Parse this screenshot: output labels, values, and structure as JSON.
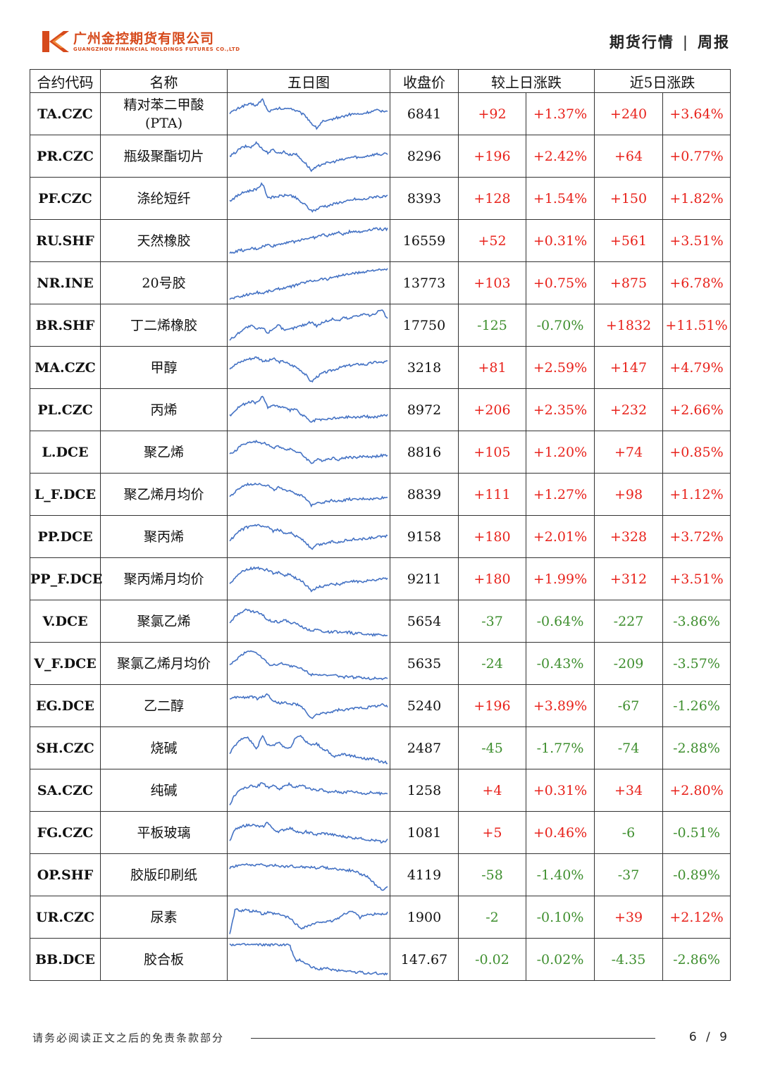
{
  "header": {
    "company_cn": "广州金控期货有限公司",
    "company_en": "GUANGZHOU FINANCIAL HOLDINGS FUTURES CO.,LTD",
    "section": "期货行情",
    "separator": "|",
    "report_type": "周报",
    "brand_color": "#d64a1c"
  },
  "table": {
    "headers": {
      "code": "合约代码",
      "name": "名称",
      "chart": "五日图",
      "close": "收盘价",
      "daily": "较上日涨跌",
      "five_day": "近5日涨跌"
    },
    "colors": {
      "up": "#e8221b",
      "down": "#3f8f2f",
      "line": "#4472c4"
    },
    "rows": [
      {
        "code": "TA.CZC",
        "name": "精对苯二甲酸(PTA)",
        "name_line1": "精对苯二甲酸",
        "name_line2": "(PTA)",
        "close": "6841",
        "d_chg": "+92",
        "d_pct": "+1.37%",
        "w_chg": "+240",
        "w_pct": "+3.64%",
        "trend": [
          0.55,
          0.62,
          0.72,
          0.78,
          0.8,
          0.76,
          0.95,
          0.6,
          0.62,
          0.68,
          0.65,
          0.7,
          0.62,
          0.55,
          0.45,
          0.25,
          0.1,
          0.3,
          0.3,
          0.38,
          0.42,
          0.45,
          0.5,
          0.52,
          0.5,
          0.55,
          0.58,
          0.62,
          0.6,
          0.62
        ]
      },
      {
        "code": "PR.CZC",
        "name": "瓶级聚酯切片",
        "name_line1": "瓶级聚酯切片",
        "close": "8296",
        "d_chg": "+196",
        "d_pct": "+2.42%",
        "w_chg": "+64",
        "w_pct": "+0.77%",
        "trend": [
          0.5,
          0.62,
          0.75,
          0.8,
          0.78,
          0.92,
          0.72,
          0.62,
          0.7,
          0.6,
          0.65,
          0.55,
          0.6,
          0.45,
          0.3,
          0.1,
          0.2,
          0.3,
          0.32,
          0.35,
          0.4,
          0.42,
          0.48,
          0.5,
          0.47,
          0.52,
          0.55,
          0.58,
          0.56,
          0.6
        ]
      },
      {
        "code": "PF.CZC",
        "name": "涤纶短纤",
        "name_line1": "涤纶短纤",
        "close": "8393",
        "d_chg": "+128",
        "d_pct": "+1.54%",
        "w_chg": "+150",
        "w_pct": "+1.82%",
        "trend": [
          0.45,
          0.55,
          0.65,
          0.72,
          0.75,
          0.8,
          0.95,
          0.55,
          0.55,
          0.58,
          0.6,
          0.62,
          0.55,
          0.42,
          0.32,
          0.15,
          0.2,
          0.3,
          0.3,
          0.35,
          0.4,
          0.42,
          0.45,
          0.5,
          0.48,
          0.5,
          0.55,
          0.58,
          0.56,
          0.58
        ]
      },
      {
        "code": "RU.SHF",
        "name": "天然橡胶",
        "name_line1": "天然橡胶",
        "close": "16559",
        "d_chg": "+52",
        "d_pct": "+0.31%",
        "w_chg": "+561",
        "w_pct": "+3.51%",
        "trend": [
          0.15,
          0.2,
          0.25,
          0.22,
          0.3,
          0.28,
          0.35,
          0.4,
          0.36,
          0.42,
          0.45,
          0.5,
          0.48,
          0.55,
          0.58,
          0.6,
          0.62,
          0.7,
          0.66,
          0.72,
          0.75,
          0.7,
          0.78,
          0.8,
          0.76,
          0.82,
          0.85,
          0.88,
          0.84,
          0.86
        ]
      },
      {
        "code": "NR.INE",
        "name": "20号胶",
        "name_line1": "20号胶",
        "close": "13773",
        "d_chg": "+103",
        "d_pct": "+0.75%",
        "w_chg": "+875",
        "w_pct": "+6.78%",
        "trend": [
          0.05,
          0.1,
          0.12,
          0.18,
          0.2,
          0.25,
          0.22,
          0.28,
          0.3,
          0.35,
          0.38,
          0.4,
          0.45,
          0.5,
          0.55,
          0.58,
          0.6,
          0.65,
          0.62,
          0.7,
          0.72,
          0.75,
          0.78,
          0.8,
          0.82,
          0.85,
          0.88,
          0.9,
          0.88,
          0.92
        ]
      },
      {
        "code": "BR.SHF",
        "name": "丁二烯橡胶",
        "name_line1": "丁二烯橡胶",
        "close": "17750",
        "d_chg": "-125",
        "d_pct": "-0.70%",
        "w_chg": "+1832",
        "w_pct": "+11.51%",
        "trend": [
          0.1,
          0.2,
          0.35,
          0.45,
          0.5,
          0.4,
          0.45,
          0.3,
          0.42,
          0.55,
          0.35,
          0.4,
          0.45,
          0.5,
          0.55,
          0.62,
          0.5,
          0.6,
          0.65,
          0.7,
          0.65,
          0.75,
          0.7,
          0.8,
          0.82,
          0.85,
          0.78,
          0.9,
          0.95,
          0.7
        ]
      },
      {
        "code": "MA.CZC",
        "name": "甲醇",
        "name_line1": "甲醇",
        "close": "3218",
        "d_chg": "+81",
        "d_pct": "+2.59%",
        "w_chg": "+147",
        "w_pct": "+4.79%",
        "trend": [
          0.5,
          0.6,
          0.68,
          0.75,
          0.78,
          0.82,
          0.72,
          0.7,
          0.78,
          0.68,
          0.7,
          0.6,
          0.55,
          0.45,
          0.3,
          0.1,
          0.25,
          0.35,
          0.4,
          0.45,
          0.5,
          0.55,
          0.58,
          0.6,
          0.62,
          0.6,
          0.65,
          0.68,
          0.66,
          0.7
        ]
      },
      {
        "code": "PL.CZC",
        "name": "丙烯",
        "name_line1": "丙烯",
        "close": "8972",
        "d_chg": "+206",
        "d_pct": "+2.35%",
        "w_chg": "+232",
        "w_pct": "+2.66%",
        "trend": [
          0.35,
          0.5,
          0.65,
          0.7,
          0.75,
          0.72,
          0.9,
          0.6,
          0.65,
          0.62,
          0.58,
          0.5,
          0.55,
          0.4,
          0.3,
          0.15,
          0.25,
          0.22,
          0.25,
          0.28,
          0.28,
          0.3,
          0.32,
          0.3,
          0.32,
          0.33,
          0.3,
          0.32,
          0.35,
          0.38
        ]
      },
      {
        "code": "L.DCE",
        "name": "聚乙烯",
        "name_line1": "聚乙烯",
        "close": "8816",
        "d_chg": "+105",
        "d_pct": "+1.20%",
        "w_chg": "+74",
        "w_pct": "+0.85%",
        "trend": [
          0.45,
          0.55,
          0.7,
          0.78,
          0.8,
          0.82,
          0.78,
          0.75,
          0.62,
          0.7,
          0.6,
          0.62,
          0.55,
          0.48,
          0.35,
          0.2,
          0.3,
          0.28,
          0.32,
          0.35,
          0.3,
          0.35,
          0.38,
          0.36,
          0.38,
          0.4,
          0.38,
          0.4,
          0.42,
          0.42
        ]
      },
      {
        "code": "L_F.DCE",
        "name": "聚乙烯月均价",
        "name_line1": "聚乙烯月均价",
        "close": "8839",
        "d_chg": "+111",
        "d_pct": "+1.27%",
        "w_chg": "+98",
        "w_pct": "+1.12%",
        "trend": [
          0.45,
          0.58,
          0.72,
          0.8,
          0.82,
          0.84,
          0.8,
          0.78,
          0.65,
          0.72,
          0.62,
          0.65,
          0.55,
          0.5,
          0.38,
          0.2,
          0.3,
          0.28,
          0.32,
          0.35,
          0.32,
          0.35,
          0.38,
          0.36,
          0.38,
          0.4,
          0.38,
          0.4,
          0.42,
          0.43
        ]
      },
      {
        "code": "PP.DCE",
        "name": "聚丙烯",
        "name_line1": "聚丙烯",
        "close": "9158",
        "d_chg": "+180",
        "d_pct": "+2.01%",
        "w_chg": "+328",
        "w_pct": "+3.72%",
        "trend": [
          0.4,
          0.55,
          0.7,
          0.78,
          0.82,
          0.85,
          0.8,
          0.78,
          0.68,
          0.72,
          0.62,
          0.65,
          0.55,
          0.48,
          0.35,
          0.15,
          0.28,
          0.3,
          0.35,
          0.38,
          0.36,
          0.4,
          0.42,
          0.45,
          0.44,
          0.46,
          0.48,
          0.5,
          0.52,
          0.55
        ]
      },
      {
        "code": "PP_F.DCE",
        "name": "聚丙烯月均价",
        "name_line1": "聚丙烯月均价",
        "close": "9211",
        "d_chg": "+180",
        "d_pct": "+1.99%",
        "w_chg": "+312",
        "w_pct": "+3.51%",
        "trend": [
          0.4,
          0.55,
          0.7,
          0.78,
          0.82,
          0.85,
          0.8,
          0.78,
          0.68,
          0.72,
          0.62,
          0.65,
          0.55,
          0.48,
          0.35,
          0.15,
          0.28,
          0.3,
          0.35,
          0.38,
          0.36,
          0.4,
          0.42,
          0.45,
          0.44,
          0.46,
          0.48,
          0.5,
          0.52,
          0.55
        ]
      },
      {
        "code": "V.DCE",
        "name": "聚氯乙烯",
        "name_line1": "聚氯乙烯",
        "close": "5654",
        "d_chg": "-37",
        "d_pct": "-0.64%",
        "w_chg": "-227",
        "w_pct": "-3.86%",
        "trend": [
          0.5,
          0.65,
          0.78,
          0.85,
          0.8,
          0.78,
          0.7,
          0.55,
          0.52,
          0.5,
          0.55,
          0.48,
          0.45,
          0.4,
          0.3,
          0.25,
          0.28,
          0.22,
          0.2,
          0.22,
          0.2,
          0.18,
          0.2,
          0.15,
          0.18,
          0.15,
          0.12,
          0.14,
          0.12,
          0.12
        ]
      },
      {
        "code": "V_F.DCE",
        "name": "聚氯乙烯月均价",
        "name_line1": "聚氯乙烯月均价",
        "close": "5635",
        "d_chg": "-24",
        "d_pct": "-0.43%",
        "w_chg": "-209",
        "w_pct": "-3.57%",
        "trend": [
          0.45,
          0.6,
          0.75,
          0.85,
          0.9,
          0.8,
          0.7,
          0.5,
          0.48,
          0.5,
          0.52,
          0.45,
          0.42,
          0.38,
          0.3,
          0.2,
          0.22,
          0.18,
          0.15,
          0.18,
          0.15,
          0.12,
          0.15,
          0.1,
          0.12,
          0.1,
          0.08,
          0.1,
          0.08,
          0.1
        ]
      },
      {
        "code": "EG.DCE",
        "name": "乙二醇",
        "name_line1": "乙二醇",
        "close": "5240",
        "d_chg": "+196",
        "d_pct": "+3.89%",
        "w_chg": "-67",
        "w_pct": "-1.26%",
        "trend": [
          0.7,
          0.75,
          0.78,
          0.75,
          0.8,
          0.72,
          0.78,
          0.85,
          0.65,
          0.6,
          0.62,
          0.55,
          0.58,
          0.5,
          0.35,
          0.15,
          0.25,
          0.3,
          0.32,
          0.35,
          0.4,
          0.38,
          0.42,
          0.45,
          0.48,
          0.45,
          0.5,
          0.52,
          0.55,
          0.5
        ]
      },
      {
        "code": "SH.CZC",
        "name": "烧碱",
        "name_line1": "烧碱",
        "close": "2487",
        "d_chg": "-45",
        "d_pct": "-1.77%",
        "w_chg": "-74",
        "w_pct": "-2.88%",
        "trend": [
          0.35,
          0.6,
          0.75,
          0.85,
          0.7,
          0.5,
          0.88,
          0.6,
          0.6,
          0.7,
          0.55,
          0.5,
          0.8,
          0.9,
          0.7,
          0.6,
          0.65,
          0.5,
          0.45,
          0.25,
          0.3,
          0.35,
          0.3,
          0.28,
          0.25,
          0.2,
          0.22,
          0.15,
          0.12,
          0.1
        ]
      },
      {
        "code": "SA.CZC",
        "name": "纯碱",
        "name_line1": "纯碱",
        "close": "1258",
        "d_chg": "+4",
        "d_pct": "+0.31%",
        "w_chg": "+34",
        "w_pct": "+2.80%",
        "trend": [
          0.1,
          0.4,
          0.55,
          0.6,
          0.65,
          0.62,
          0.75,
          0.6,
          0.65,
          0.55,
          0.62,
          0.7,
          0.6,
          0.68,
          0.6,
          0.55,
          0.5,
          0.55,
          0.45,
          0.5,
          0.48,
          0.45,
          0.5,
          0.48,
          0.45,
          0.42,
          0.46,
          0.44,
          0.42,
          0.45
        ]
      },
      {
        "code": "FG.CZC",
        "name": "平板玻璃",
        "name_line1": "平板玻璃",
        "close": "1081",
        "d_chg": "+5",
        "d_pct": "+0.46%",
        "w_chg": "-6",
        "w_pct": "-0.51%",
        "trend": [
          0.3,
          0.6,
          0.7,
          0.72,
          0.75,
          0.7,
          0.68,
          0.82,
          0.6,
          0.55,
          0.6,
          0.65,
          0.58,
          0.5,
          0.55,
          0.5,
          0.45,
          0.5,
          0.48,
          0.45,
          0.42,
          0.4,
          0.38,
          0.35,
          0.38,
          0.32,
          0.3,
          0.28,
          0.25,
          0.3
        ]
      },
      {
        "code": "OP.SHF",
        "name": "胶版印刷纸",
        "name_line1": "胶版印刷纸",
        "close": "4119",
        "d_chg": "-58",
        "d_pct": "-1.40%",
        "w_chg": "-37",
        "w_pct": "-0.89%",
        "trend": [
          0.72,
          0.78,
          0.8,
          0.82,
          0.8,
          0.82,
          0.8,
          0.78,
          0.8,
          0.78,
          0.76,
          0.78,
          0.75,
          0.76,
          0.74,
          0.75,
          0.72,
          0.74,
          0.72,
          0.7,
          0.68,
          0.66,
          0.65,
          0.62,
          0.55,
          0.5,
          0.35,
          0.2,
          0.1,
          0.15
        ]
      },
      {
        "code": "UR.CZC",
        "name": "尿素",
        "name_line1": "尿素",
        "close": "1900",
        "d_chg": "-2",
        "d_pct": "-0.10%",
        "w_chg": "+39",
        "w_pct": "+2.12%",
        "trend": [
          0.0,
          0.75,
          0.7,
          0.72,
          0.68,
          0.7,
          0.6,
          0.65,
          0.62,
          0.6,
          0.55,
          0.5,
          0.35,
          0.2,
          0.25,
          0.3,
          0.35,
          0.4,
          0.38,
          0.42,
          0.5,
          0.6,
          0.7,
          0.65,
          0.5,
          0.6,
          0.58,
          0.62,
          0.6,
          0.65
        ]
      },
      {
        "code": "BB.DCE",
        "name": "胶合板",
        "name_line1": "胶合板",
        "close": "147.67",
        "d_chg": "-0.02",
        "d_pct": "-0.02%",
        "w_chg": "-4.35",
        "w_pct": "-2.86%",
        "trend": [
          0.95,
          0.95,
          0.94,
          0.94,
          0.94,
          0.94,
          0.94,
          0.94,
          0.94,
          0.94,
          0.94,
          0.94,
          0.5,
          0.5,
          0.4,
          0.3,
          0.25,
          0.25,
          0.25,
          0.22,
          0.2,
          0.2,
          0.18,
          0.15,
          0.15,
          0.12,
          0.12,
          0.12,
          0.1,
          0.1
        ]
      }
    ]
  },
  "footer": {
    "note": "请务必阅读正文之后的免责条款部分",
    "page": "6 / 9"
  }
}
